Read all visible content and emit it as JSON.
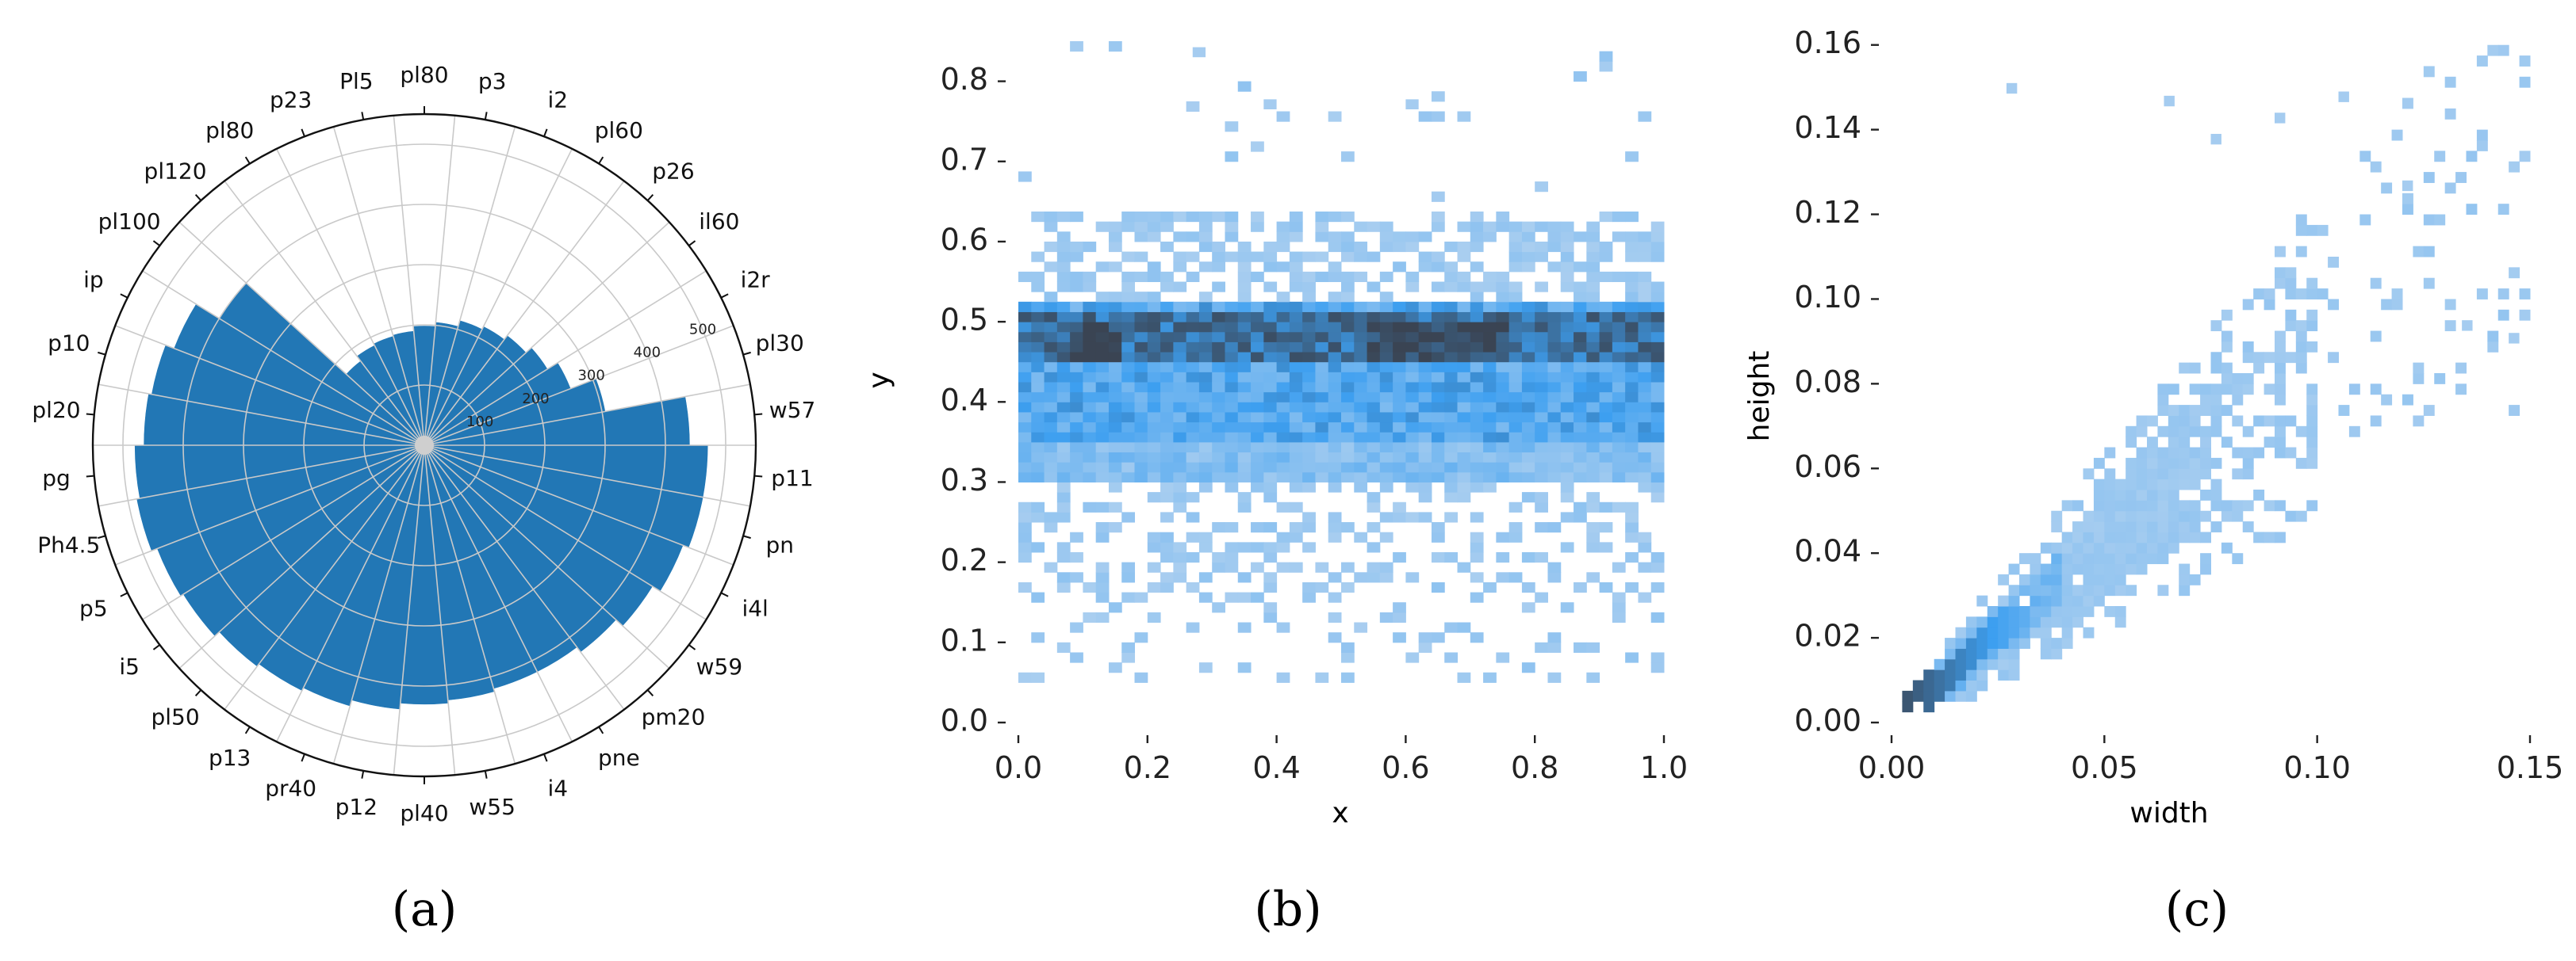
{
  "chart_data": [
    {
      "type": "bar",
      "projection": "polar",
      "categories": [
        "w57",
        "pl30",
        "i2r",
        "il60",
        "p26",
        "pl60",
        "i2",
        "p3",
        "pl80",
        "Pl5",
        "p23",
        "pl80",
        "pl120",
        "pl100",
        "ip",
        "p10",
        "pl20",
        "pg",
        "Ph4.5",
        "p5",
        "i5",
        "pl50",
        "p13",
        "pr40",
        "p12",
        "pl40",
        "w55",
        "i4",
        "pne",
        "pm20",
        "w59",
        "i4l",
        "pn",
        "p11"
      ],
      "values": [
        440,
        305,
        260,
        240,
        228,
        220,
        215,
        205,
        198,
        190,
        188,
        185,
        175,
        400,
        445,
        460,
        465,
        480,
        485,
        475,
        470,
        460,
        455,
        450,
        440,
        430,
        425,
        420,
        420,
        430,
        445,
        460,
        470,
        470
      ],
      "r_ticks": [
        100,
        200,
        300,
        400,
        500
      ],
      "r_max": 550,
      "color": "#2277b5",
      "caption": "(a)"
    },
    {
      "type": "heatmap",
      "xlabel": "x",
      "ylabel": "y",
      "xlim": [
        0.0,
        1.0
      ],
      "ylim": [
        0.0,
        0.85
      ],
      "xticks": [
        "0.0",
        "0.2",
        "0.4",
        "0.6",
        "0.8",
        "1.0"
      ],
      "yticks": [
        "0.0",
        "0.1",
        "0.2",
        "0.3",
        "0.4",
        "0.5",
        "0.6",
        "0.7",
        "0.8"
      ],
      "color_low": "#a9cef0",
      "color_mid": "#3d9ff0",
      "color_high": "#3a4453",
      "caption": "(b)"
    },
    {
      "type": "heatmap",
      "xlabel": "width",
      "ylabel": "height",
      "xlim": [
        0.0,
        0.15
      ],
      "ylim": [
        0.0,
        0.165
      ],
      "xticks": [
        "0.00",
        "0.05",
        "0.10",
        "0.15"
      ],
      "yticks": [
        "0.00",
        "0.02",
        "0.04",
        "0.06",
        "0.08",
        "0.10",
        "0.12",
        "0.14",
        "0.16"
      ],
      "color_low": "#a9cef0",
      "color_mid": "#3d9ff0",
      "color_high": "#3a4453",
      "caption": "(c)"
    }
  ]
}
